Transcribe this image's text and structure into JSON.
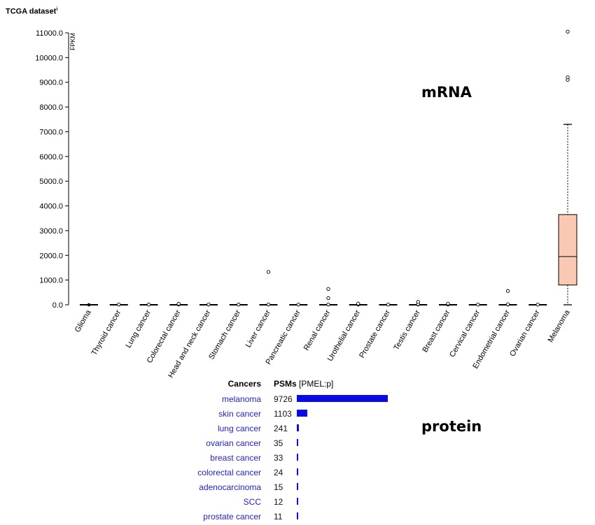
{
  "header": {
    "title": "TCGA dataset",
    "info_mark": "i"
  },
  "labels": {
    "mrna": "mRNA",
    "protein": "protein"
  },
  "chart_data": [
    {
      "type": "box",
      "title": "TCGA dataset",
      "ylabel": "FPKM",
      "ylim": [
        0,
        11000
      ],
      "yticks": [
        "0.0",
        "1000.0",
        "2000.0",
        "3000.0",
        "4000.0",
        "5000.0",
        "6000.0",
        "7000.0",
        "8000.0",
        "9000.0",
        "10000.0",
        "11000.0"
      ],
      "grid": false,
      "box_color": "#f9c9b3",
      "categories": [
        "Glioma",
        "Thyroid cancer",
        "Lung cancer",
        "Colorectal cancer",
        "Head and neck cancer",
        "Stomach cancer",
        "Liver cancer",
        "Pancreatic cancer",
        "Renal cancer",
        "Urothelial cancer",
        "Prostate cancer",
        "Testis cancer",
        "Breast cancer",
        "Cervical cancer",
        "Endometrial cancer",
        "Ovarian cancer",
        "Melanoma"
      ],
      "boxes": [
        {
          "whisker_low": 0,
          "q1": 0,
          "median": 0,
          "q3": 5,
          "whisker_high": 10,
          "outliers": []
        },
        {
          "whisker_low": 0,
          "q1": 0,
          "median": 0,
          "q3": 5,
          "whisker_high": 10,
          "outliers": [
            15
          ]
        },
        {
          "whisker_low": 0,
          "q1": 0,
          "median": 0,
          "q3": 5,
          "whisker_high": 10,
          "outliers": [
            12
          ]
        },
        {
          "whisker_low": 0,
          "q1": 0,
          "median": 0,
          "q3": 5,
          "whisker_high": 15,
          "outliers": [
            25,
            40
          ]
        },
        {
          "whisker_low": 0,
          "q1": 0,
          "median": 0,
          "q3": 5,
          "whisker_high": 10,
          "outliers": [
            15
          ]
        },
        {
          "whisker_low": 0,
          "q1": 0,
          "median": 0,
          "q3": 5,
          "whisker_high": 10,
          "outliers": [
            12
          ]
        },
        {
          "whisker_low": 0,
          "q1": 0,
          "median": 0,
          "q3": 5,
          "whisker_high": 10,
          "outliers": [
            15,
            1330
          ]
        },
        {
          "whisker_low": 0,
          "q1": 0,
          "median": 0,
          "q3": 5,
          "whisker_high": 10,
          "outliers": [
            10
          ]
        },
        {
          "whisker_low": 0,
          "q1": 0,
          "median": 0,
          "q3": 5,
          "whisker_high": 10,
          "outliers": [
            15,
            270,
            640
          ]
        },
        {
          "whisker_low": 0,
          "q1": 0,
          "median": 0,
          "q3": 5,
          "whisker_high": 15,
          "outliers": [
            30,
            50
          ]
        },
        {
          "whisker_low": 0,
          "q1": 0,
          "median": 0,
          "q3": 5,
          "whisker_high": 10,
          "outliers": [
            10
          ]
        },
        {
          "whisker_low": 0,
          "q1": 0,
          "median": 0,
          "q3": 5,
          "whisker_high": 15,
          "outliers": [
            30,
            120
          ]
        },
        {
          "whisker_low": 0,
          "q1": 0,
          "median": 0,
          "q3": 5,
          "whisker_high": 15,
          "outliers": [
            30,
            50
          ]
        },
        {
          "whisker_low": 0,
          "q1": 0,
          "median": 0,
          "q3": 5,
          "whisker_high": 10,
          "outliers": [
            10
          ]
        },
        {
          "whisker_low": 0,
          "q1": 0,
          "median": 0,
          "q3": 5,
          "whisker_high": 15,
          "outliers": [
            20,
            560
          ]
        },
        {
          "whisker_low": 0,
          "q1": 0,
          "median": 0,
          "q3": 5,
          "whisker_high": 10,
          "outliers": [
            10
          ]
        },
        {
          "whisker_low": 0,
          "q1": 800,
          "median": 1950,
          "q3": 3650,
          "whisker_high": 7300,
          "outliers": [
            9100,
            9200,
            11050
          ]
        }
      ]
    },
    {
      "type": "bar",
      "orientation": "horizontal",
      "category_header": "Cancers",
      "value_header": "PSMs",
      "value_subheader": "[PMEL:p]",
      "bar_color": "#0a0ae6",
      "xlim": [
        0,
        9726
      ],
      "categories": [
        "melanoma",
        "skin cancer",
        "lung cancer",
        "ovarian cancer",
        "breast cancer",
        "colorectal cancer",
        "adenocarcinoma",
        "SCC",
        "prostate cancer"
      ],
      "values": [
        9726,
        1103,
        241,
        35,
        33,
        24,
        15,
        12,
        11
      ]
    }
  ]
}
